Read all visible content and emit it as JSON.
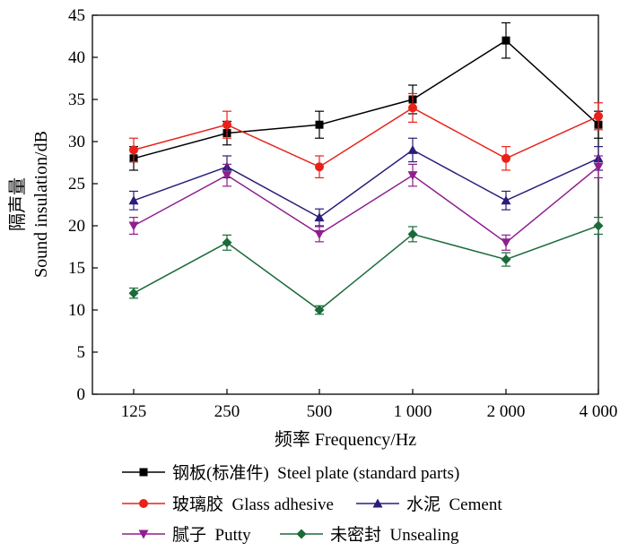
{
  "chart_data": {
    "type": "line",
    "xlabel": "频率 Frequency/Hz",
    "ylabel_cn": "隔声量",
    "ylabel_en": "Sound insulation/dB",
    "categories": [
      "125",
      "250",
      "500",
      "1 000",
      "2 000",
      "4 000"
    ],
    "ylim": [
      0,
      45
    ],
    "yticks": [
      "0",
      "5",
      "10",
      "15",
      "20",
      "25",
      "30",
      "35",
      "40",
      "45"
    ],
    "grid": false,
    "legend_position": "bottom",
    "series": [
      {
        "name": "钢板(标准件)  Steel plate (standard parts)",
        "color": "#000000",
        "marker": "square",
        "values": [
          28,
          31,
          32,
          35,
          42,
          32
        ],
        "errors": [
          1.4,
          1.4,
          1.6,
          1.7,
          2.1,
          1.6
        ]
      },
      {
        "name": "玻璃胶  Glass adhesive",
        "color": "#e8221b",
        "marker": "circle",
        "values": [
          29,
          32,
          27,
          34,
          28,
          33
        ],
        "errors": [
          1.4,
          1.6,
          1.3,
          1.7,
          1.4,
          1.6
        ]
      },
      {
        "name": "水泥  Cement",
        "color": "#2a1e7a",
        "marker": "triangle-up",
        "values": [
          23,
          27,
          21,
          29,
          23,
          28
        ],
        "errors": [
          1.1,
          1.3,
          1.0,
          1.4,
          1.1,
          1.4
        ]
      },
      {
        "name": "腻子  Putty",
        "color": "#8e1f8e",
        "marker": "triangle-down",
        "values": [
          20,
          26,
          19,
          26,
          18,
          27
        ],
        "errors": [
          1.0,
          1.3,
          0.9,
          1.3,
          0.9,
          1.3
        ]
      },
      {
        "name": "未密封  Unsealing",
        "color": "#1b6b3a",
        "marker": "diamond",
        "values": [
          12,
          18,
          10,
          19,
          16,
          20
        ],
        "errors": [
          0.6,
          0.9,
          0.5,
          0.9,
          0.8,
          1.0
        ]
      }
    ]
  }
}
